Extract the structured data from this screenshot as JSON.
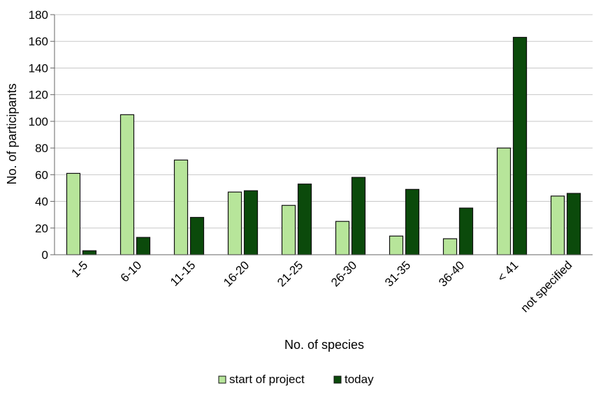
{
  "chart_data": {
    "type": "bar",
    "title": "",
    "xlabel": "No. of species",
    "ylabel": "No. of participants",
    "ylim": [
      0,
      180
    ],
    "ytick_step": 20,
    "grid": true,
    "legend_position": "bottom",
    "categories": [
      "1-5",
      "6-10",
      "11-15",
      "16-20",
      "21-25",
      "26-30",
      "31-35",
      "36-40",
      "< 41",
      "not specified"
    ],
    "series": [
      {
        "name": "start of project",
        "color": "#b7e59a",
        "values": [
          61,
          105,
          71,
          47,
          37,
          25,
          14,
          12,
          80,
          44
        ]
      },
      {
        "name": "today",
        "color": "#0b4a0b",
        "values": [
          3,
          13,
          28,
          48,
          53,
          58,
          49,
          35,
          163,
          46
        ]
      }
    ]
  }
}
